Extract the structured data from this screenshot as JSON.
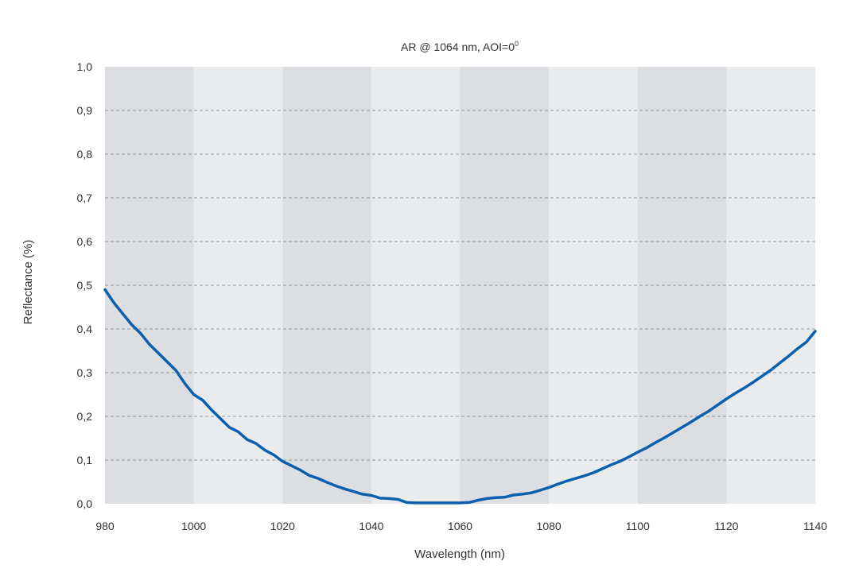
{
  "chart_data": {
    "type": "line",
    "title": "AR @ 1064 nm, AOI=0",
    "title_superscript": "0",
    "xlabel": "Wavelength (nm)",
    "ylabel": "Reflectance (%)",
    "xlim": [
      980,
      1140
    ],
    "ylim": [
      0.0,
      1.0
    ],
    "x_ticks": [
      "980",
      "1000",
      "1020",
      "1040",
      "1060",
      "1080",
      "1100",
      "1120",
      "1140"
    ],
    "y_ticks": [
      "0,0",
      "0,1",
      "0,2",
      "0,3",
      "0,4",
      "0,5",
      "0,6",
      "0,7",
      "0,8",
      "0,9",
      "1,0"
    ],
    "grid": "horizontal dashed",
    "background_bands": "alternating vertical bands every 20 nm",
    "colors": {
      "line": "#0a5fae",
      "band_dark": "#dcdee1",
      "band_light": "#e9ebed",
      "grid": "#7f7f7f"
    },
    "series": [
      {
        "x": [
          980,
          982,
          984,
          986,
          988,
          990,
          992,
          994,
          996,
          998,
          1000,
          1002,
          1004,
          1006,
          1008,
          1010,
          1012,
          1014,
          1016,
          1018,
          1020,
          1022,
          1024,
          1026,
          1028,
          1030,
          1032,
          1034,
          1036,
          1038,
          1040,
          1042,
          1044,
          1046,
          1048,
          1050,
          1052,
          1054,
          1056,
          1058,
          1060,
          1062,
          1064,
          1066,
          1068,
          1070,
          1072,
          1074,
          1076,
          1078,
          1080,
          1082,
          1084,
          1086,
          1088,
          1090,
          1092,
          1094,
          1096,
          1098,
          1100,
          1102,
          1104,
          1106,
          1108,
          1110,
          1112,
          1114,
          1116,
          1118,
          1120,
          1122,
          1124,
          1126,
          1128,
          1130,
          1132,
          1134,
          1136,
          1138,
          1140
        ],
        "y": [
          0.49,
          0.46,
          0.435,
          0.41,
          0.39,
          0.365,
          0.345,
          0.325,
          0.305,
          0.275,
          0.25,
          0.237,
          0.215,
          0.195,
          0.175,
          0.165,
          0.147,
          0.138,
          0.123,
          0.112,
          0.097,
          0.087,
          0.077,
          0.065,
          0.058,
          0.049,
          0.041,
          0.034,
          0.028,
          0.022,
          0.019,
          0.013,
          0.012,
          0.01,
          0.003,
          0.002,
          0.002,
          0.002,
          0.002,
          0.002,
          0.002,
          0.003,
          0.008,
          0.012,
          0.014,
          0.015,
          0.02,
          0.022,
          0.025,
          0.031,
          0.037,
          0.045,
          0.052,
          0.058,
          0.064,
          0.071,
          0.08,
          0.089,
          0.097,
          0.107,
          0.118,
          0.128,
          0.14,
          0.151,
          0.163,
          0.175,
          0.187,
          0.2,
          0.212,
          0.226,
          0.24,
          0.253,
          0.265,
          0.278,
          0.292,
          0.306,
          0.322,
          0.338,
          0.355,
          0.37,
          0.395
        ]
      }
    ]
  }
}
